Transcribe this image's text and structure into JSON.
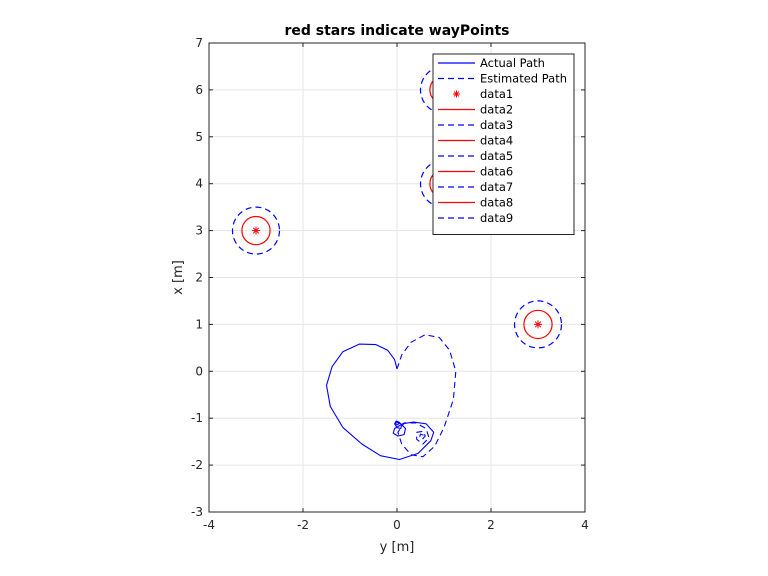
{
  "chart_data": {
    "type": "line",
    "title": "red stars indicate wayPoints",
    "xlabel": "y [m]",
    "ylabel": "x [m]",
    "xlim": [
      -4,
      4
    ],
    "ylim": [
      -3,
      7
    ],
    "xticks": [
      -4,
      -2,
      0,
      2,
      4
    ],
    "yticks": [
      -3,
      -2,
      -1,
      0,
      1,
      2,
      3,
      4,
      5,
      6,
      7
    ],
    "grid": true,
    "legend_position": "top-right",
    "colors": {
      "actual": "#0000ff",
      "estimated": "#0000ff",
      "waypoint": "#ff0000",
      "grid": "#e6e6e6"
    },
    "waypoints": [
      {
        "x": -3,
        "y": 3
      },
      {
        "x": 1,
        "y": 6
      },
      {
        "x": 1,
        "y": 4
      },
      {
        "x": 3,
        "y": 1
      }
    ],
    "waypoint_radius_inner": 0.3,
    "waypoint_radius_outer": 0.5,
    "series": [
      {
        "name": "Actual Path",
        "style": "solid",
        "points": [
          [
            0,
            0.05
          ],
          [
            -0.05,
            0.25
          ],
          [
            -0.2,
            0.45
          ],
          [
            -0.45,
            0.57
          ],
          [
            -0.8,
            0.58
          ],
          [
            -1.15,
            0.42
          ],
          [
            -1.38,
            0.1
          ],
          [
            -1.5,
            -0.3
          ],
          [
            -1.42,
            -0.75
          ],
          [
            -1.15,
            -1.2
          ],
          [
            -0.75,
            -1.55
          ],
          [
            -0.35,
            -1.8
          ],
          [
            0.05,
            -1.88
          ],
          [
            0.45,
            -1.75
          ],
          [
            0.72,
            -1.48
          ],
          [
            0.78,
            -1.3
          ],
          [
            0.62,
            -1.12
          ],
          [
            0.35,
            -1.08
          ],
          [
            0.12,
            -1.12
          ],
          [
            -0.05,
            -1.22
          ],
          [
            -0.08,
            -1.32
          ],
          [
            0.02,
            -1.38
          ],
          [
            0.15,
            -1.35
          ],
          [
            0.18,
            -1.22
          ],
          [
            0.08,
            -1.12
          ],
          [
            -0.02,
            -1.08
          ],
          [
            -0.05,
            -1.12
          ],
          [
            0.0,
            -1.2
          ],
          [
            0.08,
            -1.22
          ],
          [
            0.1,
            -1.14
          ],
          [
            0.04,
            -1.08
          ],
          [
            -0.02,
            -1.06
          ],
          [
            -0.04,
            -1.1
          ],
          [
            0.0,
            -1.14
          ],
          [
            0.04,
            -1.12
          ],
          [
            0.03,
            -1.08
          ]
        ]
      },
      {
        "name": "Estimated Path",
        "style": "dashed",
        "points": [
          [
            0,
            0.05
          ],
          [
            0.1,
            0.35
          ],
          [
            0.3,
            0.62
          ],
          [
            0.6,
            0.78
          ],
          [
            0.9,
            0.72
          ],
          [
            1.12,
            0.45
          ],
          [
            1.25,
            0.0
          ],
          [
            1.2,
            -0.6
          ],
          [
            1.0,
            -1.2
          ],
          [
            0.8,
            -1.6
          ],
          [
            0.55,
            -1.82
          ],
          [
            0.3,
            -1.78
          ],
          [
            0.1,
            -1.55
          ],
          [
            0.02,
            -1.3
          ],
          [
            0.15,
            -1.1
          ],
          [
            0.4,
            -1.1
          ],
          [
            0.62,
            -1.22
          ],
          [
            0.68,
            -1.42
          ],
          [
            0.55,
            -1.55
          ],
          [
            0.42,
            -1.45
          ],
          [
            0.42,
            -1.3
          ],
          [
            0.55,
            -1.28
          ],
          [
            0.6,
            -1.38
          ],
          [
            0.54,
            -1.45
          ],
          [
            0.48,
            -1.4
          ],
          [
            0.5,
            -1.34
          ],
          [
            0.56,
            -1.36
          ],
          [
            0.55,
            -1.42
          ]
        ]
      }
    ],
    "legend": [
      "Actual Path",
      "Estimated Path",
      "data1",
      "data2",
      "data3",
      "data4",
      "data5",
      "data6",
      "data7",
      "data8",
      "data9"
    ]
  }
}
